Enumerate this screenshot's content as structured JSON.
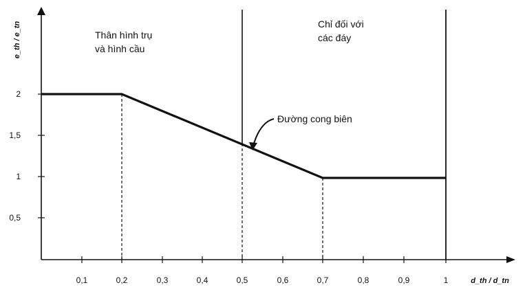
{
  "chart_data": {
    "type": "line",
    "title": "",
    "xlabel": "d_th / d_tn",
    "ylabel": "e_th / e_tn",
    "xlim": [
      0,
      1.18
    ],
    "ylim": [
      0,
      2.45
    ],
    "x_ticks": [
      "0,1",
      "0,2",
      "0,3",
      "0,4",
      "0,5",
      "0,6",
      "0,7",
      "0,8",
      "0,9",
      "1"
    ],
    "y_ticks": [
      "0,5",
      "1",
      "1,5",
      "2"
    ],
    "series": [
      {
        "name": "Đường cong biên",
        "x": [
          0,
          0.2,
          0.7,
          1.0
        ],
        "y": [
          2,
          2,
          0.98,
          0.98
        ]
      }
    ],
    "dashed_guides_x": [
      0.2,
      0.5,
      0.7
    ],
    "region_dividers_x": [
      0.5,
      1.0
    ],
    "annotations": {
      "region_left_line1": "Thân hình trụ",
      "region_left_line2": "và hình cầu",
      "region_right_line1": "Chỉ đối với",
      "region_right_line2": "các đáy",
      "curve_label": "Đường cong biên"
    },
    "colors": {
      "ink": "#111111",
      "background": "#ffffff"
    },
    "grid": false
  }
}
